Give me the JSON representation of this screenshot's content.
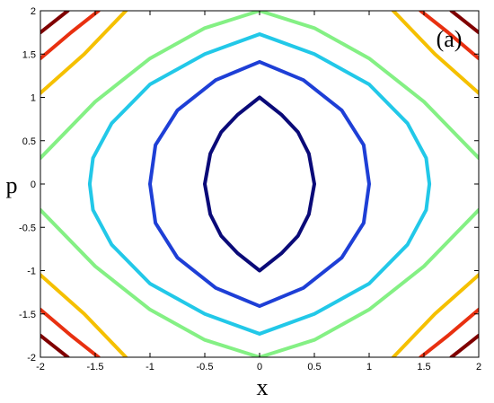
{
  "chart_data": {
    "type": "line",
    "title": "(a)",
    "x_label": "x",
    "y_label": "p",
    "xlim": [
      -2,
      2
    ],
    "ylim": [
      -2,
      2
    ],
    "xticks": [
      -2,
      -1.5,
      -1,
      -0.5,
      0,
      0.5,
      1,
      1.5,
      2
    ],
    "yticks": [
      -2,
      -1.5,
      -1,
      -0.5,
      0,
      0.5,
      1,
      1.5,
      2
    ],
    "grid": false,
    "series": [
      {
        "color": "#0a0a78",
        "x": [
          0,
          0.2,
          0.35,
          0.45,
          0.5,
          0.45,
          0.35,
          0.2,
          0,
          -0.2,
          -0.35,
          -0.45,
          -0.5,
          -0.45,
          -0.35,
          -0.2,
          0
        ],
        "values": [
          1,
          0.8,
          0.6,
          0.35,
          0,
          -0.35,
          -0.6,
          -0.8,
          -1,
          -0.8,
          -0.6,
          -0.35,
          0,
          0.35,
          0.6,
          0.8,
          1
        ]
      },
      {
        "color": "#1e3fd6",
        "x": [
          0,
          0.4,
          0.75,
          0.95,
          1,
          0.95,
          0.75,
          0.4,
          0,
          -0.4,
          -0.75,
          -0.95,
          -1,
          -0.95,
          -0.75,
          -0.4,
          0
        ],
        "values": [
          1.41,
          1.2,
          0.85,
          0.45,
          0,
          -0.45,
          -0.85,
          -1.2,
          -1.41,
          -1.2,
          -0.85,
          -0.45,
          0,
          0.45,
          0.85,
          1.2,
          1.41
        ]
      },
      {
        "color": "#22c8e8",
        "x": [
          0,
          0.5,
          1,
          1.35,
          1.52,
          1.55,
          1.52,
          1.35,
          1,
          0.5,
          0,
          -0.5,
          -1,
          -1.35,
          -1.52,
          -1.55,
          -1.52,
          -1.35,
          -1,
          -0.5,
          0
        ],
        "values": [
          1.73,
          1.5,
          1.15,
          0.7,
          0.3,
          0,
          -0.3,
          -0.7,
          -1.15,
          -1.5,
          -1.73,
          -1.5,
          -1.15,
          -0.7,
          -0.3,
          0,
          0.3,
          0.7,
          1.15,
          1.5,
          1.73
        ]
      },
      {
        "color": "#84f084",
        "x": [
          -2,
          -1.5,
          -1,
          -0.5,
          0,
          0.5,
          1,
          1.5,
          2,
          null,
          -2,
          -1.5,
          -1,
          -0.5,
          0,
          0.5,
          1,
          1.5,
          2
        ],
        "values": [
          0.3,
          0.95,
          1.45,
          1.8,
          2,
          1.8,
          1.45,
          0.95,
          0.3,
          null,
          -0.3,
          -0.95,
          -1.45,
          -1.8,
          -2,
          -1.8,
          -1.45,
          -0.95,
          -0.3
        ]
      },
      {
        "color": "#f5c000",
        "x": [
          -2,
          -1.6,
          -1.22,
          null,
          1.22,
          1.6,
          2,
          null,
          -2,
          -1.6,
          -1.22,
          null,
          1.22,
          1.6,
          2
        ],
        "values": [
          1.05,
          1.5,
          2,
          null,
          2,
          1.5,
          1.05,
          null,
          -1.05,
          -1.5,
          -2,
          null,
          -2,
          -1.5,
          -1.05
        ]
      },
      {
        "color": "#e83010",
        "x": [
          -2,
          -1.72,
          -1.47,
          null,
          1.47,
          1.72,
          2,
          null,
          -2,
          -1.72,
          -1.47,
          null,
          1.47,
          1.72,
          2
        ],
        "values": [
          1.45,
          1.75,
          2,
          null,
          2,
          1.75,
          1.45,
          null,
          -1.45,
          -1.75,
          -2,
          null,
          -2,
          -1.75,
          -1.45
        ]
      },
      {
        "color": "#800000",
        "x": [
          -2,
          -1.75,
          null,
          1.75,
          2,
          null,
          -2,
          -1.75,
          null,
          1.75,
          2
        ],
        "values": [
          1.75,
          2,
          null,
          2,
          1.75,
          null,
          -1.75,
          -2,
          null,
          -2,
          -1.75
        ]
      }
    ]
  }
}
